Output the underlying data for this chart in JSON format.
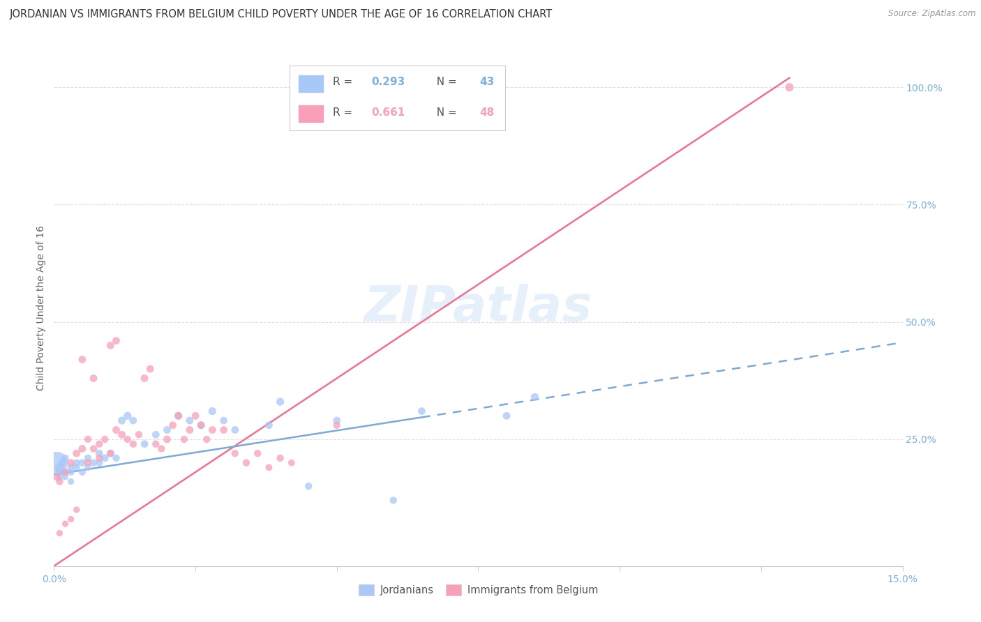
{
  "title": "JORDANIAN VS IMMIGRANTS FROM BELGIUM CHILD POVERTY UNDER THE AGE OF 16 CORRELATION CHART",
  "source": "Source: ZipAtlas.com",
  "ylabel": "Child Poverty Under the Age of 16",
  "watermark": "ZIPatlas",
  "series1_color": "#a8c8f8",
  "series2_color": "#f8a0b8",
  "trendline1_color": "#7aaadd",
  "trendline2_color": "#f07090",
  "tick_color": "#7ab0e0",
  "grid_color": "#e0e0e8",
  "background_color": "#ffffff",
  "title_fontsize": 10.5,
  "source_fontsize": 8.5,
  "ylabel_right_ticks": [
    "100.0%",
    "75.0%",
    "50.0%",
    "25.0%"
  ],
  "ylabel_right_vals": [
    1.0,
    0.75,
    0.5,
    0.25
  ],
  "xlim": [
    0.0,
    0.15
  ],
  "ylim": [
    -0.02,
    1.08
  ],
  "jordanians_x": [
    0.0005,
    0.001,
    0.001,
    0.001,
    0.0015,
    0.002,
    0.002,
    0.002,
    0.003,
    0.003,
    0.003,
    0.004,
    0.004,
    0.005,
    0.005,
    0.006,
    0.006,
    0.007,
    0.008,
    0.008,
    0.009,
    0.01,
    0.011,
    0.012,
    0.013,
    0.014,
    0.016,
    0.018,
    0.02,
    0.022,
    0.024,
    0.026,
    0.028,
    0.03,
    0.032,
    0.038,
    0.04,
    0.05,
    0.065,
    0.08,
    0.085,
    0.06,
    0.045
  ],
  "jordanians_y": [
    0.2,
    0.19,
    0.18,
    0.17,
    0.2,
    0.21,
    0.18,
    0.17,
    0.19,
    0.18,
    0.16,
    0.2,
    0.19,
    0.2,
    0.18,
    0.21,
    0.19,
    0.2,
    0.22,
    0.2,
    0.21,
    0.22,
    0.21,
    0.29,
    0.3,
    0.29,
    0.24,
    0.26,
    0.27,
    0.3,
    0.29,
    0.28,
    0.31,
    0.29,
    0.27,
    0.28,
    0.33,
    0.29,
    0.31,
    0.3,
    0.34,
    0.12,
    0.15
  ],
  "jordanians_size": [
    500,
    80,
    60,
    50,
    60,
    50,
    45,
    40,
    50,
    45,
    40,
    50,
    45,
    50,
    45,
    50,
    45,
    50,
    55,
    50,
    55,
    55,
    50,
    60,
    60,
    55,
    55,
    55,
    55,
    60,
    55,
    55,
    60,
    55,
    55,
    55,
    60,
    55,
    55,
    55,
    60,
    50,
    50
  ],
  "belgians_x": [
    0.0005,
    0.001,
    0.001,
    0.002,
    0.002,
    0.003,
    0.003,
    0.004,
    0.004,
    0.005,
    0.005,
    0.006,
    0.006,
    0.007,
    0.007,
    0.008,
    0.008,
    0.009,
    0.01,
    0.01,
    0.011,
    0.011,
    0.012,
    0.013,
    0.014,
    0.015,
    0.016,
    0.017,
    0.018,
    0.019,
    0.02,
    0.021,
    0.022,
    0.023,
    0.024,
    0.025,
    0.026,
    0.027,
    0.028,
    0.03,
    0.032,
    0.034,
    0.036,
    0.038,
    0.04,
    0.042,
    0.05,
    0.13
  ],
  "belgians_y": [
    0.17,
    0.16,
    0.05,
    0.18,
    0.07,
    0.2,
    0.08,
    0.22,
    0.1,
    0.23,
    0.42,
    0.25,
    0.2,
    0.23,
    0.38,
    0.24,
    0.21,
    0.25,
    0.45,
    0.22,
    0.27,
    0.46,
    0.26,
    0.25,
    0.24,
    0.26,
    0.38,
    0.4,
    0.24,
    0.23,
    0.25,
    0.28,
    0.3,
    0.25,
    0.27,
    0.3,
    0.28,
    0.25,
    0.27,
    0.27,
    0.22,
    0.2,
    0.22,
    0.19,
    0.21,
    0.2,
    0.28,
    1.0
  ],
  "belgians_size": [
    60,
    50,
    40,
    50,
    40,
    55,
    40,
    55,
    40,
    55,
    55,
    50,
    50,
    50,
    55,
    50,
    50,
    50,
    55,
    50,
    55,
    55,
    55,
    50,
    50,
    50,
    55,
    55,
    50,
    50,
    55,
    55,
    55,
    50,
    55,
    55,
    55,
    50,
    55,
    55,
    50,
    50,
    50,
    45,
    50,
    45,
    50,
    70
  ],
  "legend_r1": "0.293",
  "legend_n1": "43",
  "legend_r2": "0.661",
  "legend_n2": "48",
  "bottom_legend": [
    "Jordanians",
    "Immigrants from Belgium"
  ]
}
